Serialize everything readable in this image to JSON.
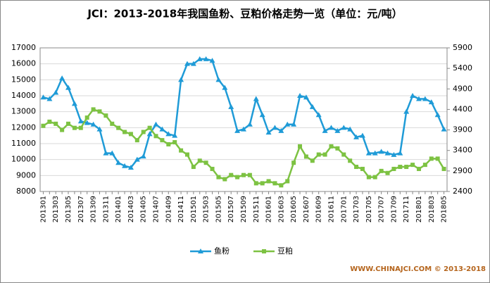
{
  "chart_data": {
    "type": "line",
    "title": "JCI：2013-2018年我国鱼粉、豆粕价格走势一览（单位：元/吨）",
    "footer": "WWW.CHINAJCI.COM © 2013-2018",
    "categories": [
      "201301",
      null,
      "201303",
      null,
      "201305",
      null,
      "201307",
      null,
      "201309",
      null,
      "201311",
      null,
      "201401",
      null,
      "201403",
      null,
      "201405",
      null,
      "201407",
      null,
      "201409",
      null,
      "201411",
      null,
      "201501",
      null,
      "201503",
      null,
      "201505",
      null,
      "201507",
      null,
      "201509",
      null,
      "201511",
      null,
      "201601",
      null,
      "201603",
      null,
      "201605",
      null,
      "201607",
      null,
      "201609",
      null,
      "201611",
      null,
      "201701",
      null,
      "201703",
      null,
      "201705",
      null,
      "201707",
      null,
      "201709",
      null,
      "201711",
      null,
      "201801",
      null,
      "201803",
      null,
      "201805"
    ],
    "series": [
      {
        "name": "鱼粉",
        "color": "#1f9bd7",
        "marker": "triangle",
        "axis": "y",
        "values": [
          13900,
          13800,
          14200,
          15100,
          14500,
          13500,
          12400,
          12300,
          12200,
          11900,
          10400,
          10400,
          9800,
          9600,
          9500,
          10000,
          10200,
          11600,
          12200,
          11900,
          11600,
          11500,
          15000,
          16000,
          16000,
          16300,
          16300,
          16200,
          15000,
          14500,
          13300,
          11800,
          11900,
          12200,
          13800,
          12800,
          11700,
          12000,
          11800,
          12200,
          12200,
          14000,
          13900,
          13300,
          12800,
          11800,
          12000,
          11800,
          12000,
          11900,
          11400,
          11500,
          10400,
          10400,
          10500,
          10400,
          10300,
          10400,
          13000,
          14000,
          13800,
          13800,
          13600,
          12800,
          11900
        ]
      },
      {
        "name": "豆粕",
        "color": "#7dc242",
        "marker": "square",
        "axis": "y2",
        "values": [
          4000,
          4100,
          4050,
          3900,
          4050,
          3950,
          3950,
          4200,
          4400,
          4350,
          4250,
          4050,
          3950,
          3850,
          3800,
          3650,
          3850,
          3950,
          3750,
          3650,
          3550,
          3600,
          3400,
          3300,
          3000,
          3150,
          3100,
          2950,
          2750,
          2700,
          2800,
          2750,
          2800,
          2800,
          2600,
          2600,
          2650,
          2600,
          2550,
          2650,
          3100,
          3500,
          3250,
          3150,
          3300,
          3300,
          3500,
          3450,
          3300,
          3150,
          3000,
          2950,
          2750,
          2750,
          2900,
          2850,
          2950,
          3000,
          3000,
          3050,
          2950,
          3050,
          3200,
          3200,
          2950
        ]
      }
    ],
    "ylim": [
      8000,
      17000
    ],
    "yticks": [
      8000,
      9000,
      10000,
      11000,
      12000,
      13000,
      14000,
      15000,
      16000,
      17000
    ],
    "y2lim": [
      2400,
      5900
    ],
    "y2ticks": [
      2400,
      2900,
      3400,
      3900,
      4400,
      4900,
      5400,
      5900
    ],
    "grid": true,
    "legend": "bottom"
  }
}
